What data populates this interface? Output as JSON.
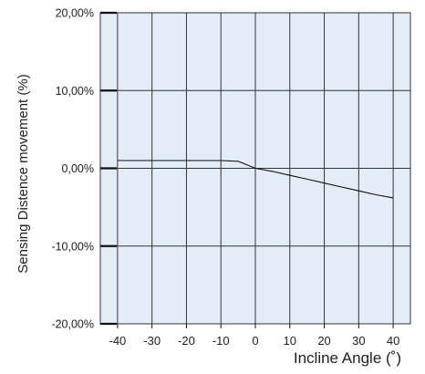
{
  "chart_data": {
    "type": "line",
    "title": "",
    "xlabel": "Incline Angle (˚)",
    "ylabel": "Sensing Distence movement (%)",
    "xlim": [
      -45,
      45
    ],
    "ylim": [
      -20,
      20
    ],
    "x_ticks": [
      -40,
      -30,
      -20,
      -10,
      0,
      10,
      20,
      30,
      40
    ],
    "x_tick_labels": [
      "-40",
      "-30",
      "-20",
      "-10",
      "0",
      "10",
      "20",
      "30",
      "40"
    ],
    "y_ticks": [
      -20,
      -10,
      0,
      10,
      20
    ],
    "y_tick_labels": [
      "-20,00%",
      "-10,00%",
      "0,00%",
      "10,00%",
      "20,00%"
    ],
    "grid": true,
    "legend": "none",
    "colors": {
      "plot_background": "#e4ecf8",
      "grid": "#333333",
      "line": "#111111"
    },
    "series": [
      {
        "x": [
          -40,
          -35,
          -30,
          -25,
          -20,
          -15,
          -10,
          -5,
          0,
          5,
          10,
          15,
          20,
          25,
          30,
          35,
          40
        ],
        "values": [
          1.0,
          1.0,
          1.0,
          1.0,
          1.0,
          1.0,
          1.0,
          0.9,
          0.0,
          -0.4,
          -0.9,
          -1.4,
          -1.9,
          -2.4,
          -2.9,
          -3.4,
          -3.8
        ]
      }
    ]
  }
}
